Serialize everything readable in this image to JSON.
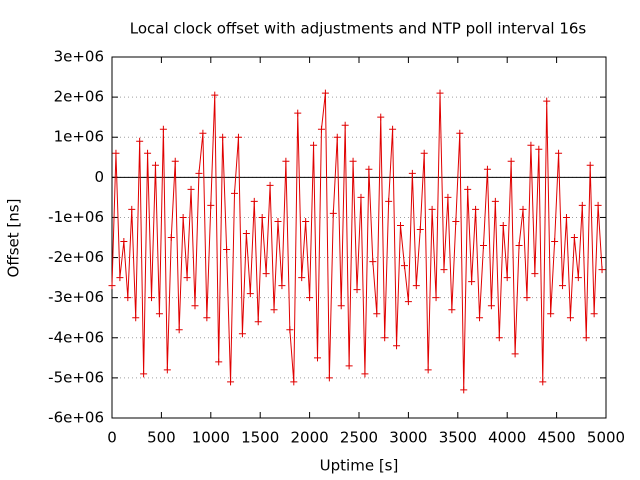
{
  "chart_data": {
    "type": "line",
    "title": "Local clock offset with adjustments and NTP poll interval 16s",
    "x_label": "Uptime [s]",
    "y_label": "Offset [ns]",
    "color": "#e00000",
    "grid": true,
    "zero_line": true,
    "markers": "+",
    "xlim": [
      0,
      5000
    ],
    "xticks": [
      0,
      500,
      1000,
      1500,
      2000,
      2500,
      3000,
      3500,
      4000,
      4500,
      5000
    ],
    "ylim": [
      -6000000,
      3000000
    ],
    "yticks": [
      {
        "value": -6000000,
        "label": "-6e+06"
      },
      {
        "value": -5000000,
        "label": "-5e+06"
      },
      {
        "value": -4000000,
        "label": "-4e+06"
      },
      {
        "value": -3000000,
        "label": "-3e+06"
      },
      {
        "value": -2000000,
        "label": "-2e+06"
      },
      {
        "value": -1000000,
        "label": "-1e+06"
      },
      0,
      {
        "value": 1000000,
        "label": "1e+06"
      },
      {
        "value": 2000000,
        "label": "2e+06"
      },
      {
        "value": 3000000,
        "label": "3e+06"
      }
    ],
    "x": [
      0,
      40,
      80,
      120,
      160,
      200,
      240,
      280,
      320,
      360,
      400,
      440,
      480,
      520,
      560,
      600,
      640,
      680,
      720,
      760,
      800,
      840,
      880,
      920,
      960,
      1000,
      1040,
      1080,
      1120,
      1160,
      1200,
      1240,
      1280,
      1320,
      1360,
      1400,
      1440,
      1480,
      1520,
      1560,
      1600,
      1640,
      1680,
      1720,
      1760,
      1800,
      1840,
      1880,
      1920,
      1960,
      2000,
      2040,
      2080,
      2120,
      2160,
      2200,
      2240,
      2280,
      2320,
      2360,
      2400,
      2440,
      2480,
      2520,
      2560,
      2600,
      2640,
      2680,
      2720,
      2760,
      2800,
      2840,
      2880,
      2920,
      2960,
      3000,
      3040,
      3080,
      3120,
      3160,
      3200,
      3240,
      3280,
      3320,
      3360,
      3400,
      3440,
      3480,
      3520,
      3560,
      3600,
      3640,
      3680,
      3720,
      3760,
      3800,
      3840,
      3880,
      3920,
      3960,
      4000,
      4040,
      4080,
      4120,
      4160,
      4200,
      4240,
      4280,
      4320,
      4360,
      4400,
      4440,
      4480,
      4520,
      4560,
      4600,
      4640,
      4680,
      4720,
      4760,
      4800,
      4840,
      4880,
      4920,
      4960
    ],
    "values": [
      -2700000,
      600000,
      -2500000,
      -1600000,
      -3000000,
      -800000,
      -3500000,
      900000,
      -4900000,
      600000,
      -3000000,
      300000,
      -3400000,
      1200000,
      -4800000,
      -1500000,
      400000,
      -3800000,
      -1000000,
      -2500000,
      -300000,
      -3200000,
      100000,
      1100000,
      -3500000,
      -700000,
      2050000,
      -4600000,
      1000000,
      -1800000,
      -5100000,
      -400000,
      1000000,
      -3900000,
      -1400000,
      -2900000,
      -600000,
      -3600000,
      -1000000,
      -2400000,
      -200000,
      -3300000,
      -1100000,
      -2700000,
      400000,
      -3800000,
      -5100000,
      1600000,
      -2500000,
      -1100000,
      -3000000,
      800000,
      -4500000,
      1200000,
      2100000,
      -5000000,
      -900000,
      1000000,
      -3200000,
      1300000,
      -4700000,
      400000,
      -2800000,
      -500000,
      -4900000,
      200000,
      -2100000,
      -3400000,
      1500000,
      -4000000,
      -600000,
      1200000,
      -4200000,
      -1200000,
      -2200000,
      -3100000,
      100000,
      -2700000,
      -1300000,
      600000,
      -4800000,
      -800000,
      -3000000,
      2100000,
      -2300000,
      -500000,
      -3300000,
      -1100000,
      1100000,
      -5300000,
      -300000,
      -2600000,
      -800000,
      -3500000,
      -1700000,
      200000,
      -3200000,
      -600000,
      -4000000,
      -1200000,
      -2500000,
      400000,
      -4400000,
      -1700000,
      -800000,
      -3000000,
      800000,
      -2400000,
      700000,
      -5100000,
      1900000,
      -3400000,
      -1600000,
      600000,
      -2700000,
      -1000000,
      -3500000,
      -1500000,
      -2500000,
      -700000,
      -4000000,
      300000,
      -3400000,
      -700000,
      -2300000
    ]
  }
}
